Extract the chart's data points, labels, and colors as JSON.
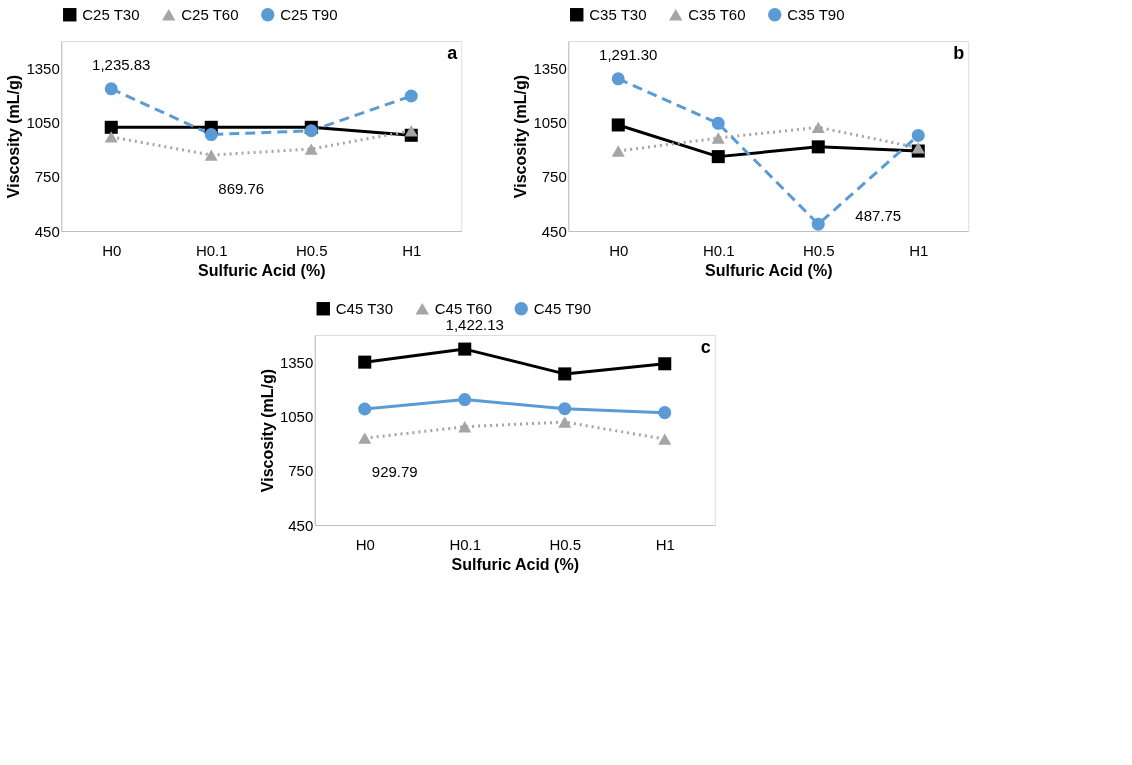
{
  "chart_data": [
    {
      "type": "line",
      "title": "a",
      "xlabel": "Sulfuric Acid  (%)",
      "ylabel": "Viscosity (mL/g)",
      "categories": [
        "H0",
        "H0.1",
        "H0.5",
        "H1"
      ],
      "ylim": [
        450,
        1500
      ],
      "yticks": [
        450,
        750,
        1050,
        1350
      ],
      "grid": false,
      "legend": "top",
      "series": [
        {
          "name": "C25 T30",
          "color": "#000000",
          "marker": "square",
          "line_style": "solid",
          "values": [
            1023,
            1023,
            1023,
            979
          ]
        },
        {
          "name": "C25 T60",
          "color": "#a5a5a5",
          "marker": "triangle",
          "line_style": "dotted",
          "values": [
            970,
            869.76,
            903,
            1004
          ]
        },
        {
          "name": "C25 T90",
          "color": "#5b9bd5",
          "marker": "circle",
          "line_style": "dashed",
          "values": [
            1235.83,
            983,
            1004,
            1196
          ]
        }
      ],
      "annotations": [
        {
          "text": "1,235.83",
          "x": "H0",
          "y": 1235.83
        },
        {
          "text": "869.76",
          "x": "H0.1",
          "y": 869.76
        }
      ]
    },
    {
      "type": "line",
      "title": "b",
      "xlabel": "Sulfuric Acid (%)",
      "ylabel": "Viscosity (mL/g)",
      "categories": [
        "H0",
        "H0.1",
        "H0.5",
        "H1"
      ],
      "ylim": [
        450,
        1500
      ],
      "yticks": [
        450,
        750,
        1050,
        1350
      ],
      "grid": false,
      "legend": "top",
      "series": [
        {
          "name": "C35 T30",
          "color": "#000000",
          "marker": "square",
          "line_style": "solid",
          "values": [
            1036,
            861,
            915,
            892
          ]
        },
        {
          "name": "C35 T60",
          "color": "#a5a5a5",
          "marker": "triangle",
          "line_style": "dotted",
          "values": [
            892,
            964,
            1023,
            910
          ]
        },
        {
          "name": "C35 T90",
          "color": "#5b9bd5",
          "marker": "circle",
          "line_style": "dashed",
          "values": [
            1291.3,
            1045,
            487.75,
            978
          ]
        }
      ],
      "annotations": [
        {
          "text": "1,291.30",
          "x": "H0",
          "y": 1291.3
        },
        {
          "text": "487.75",
          "x": "H0.5",
          "y": 487.75
        }
      ]
    },
    {
      "type": "line",
      "title": "c",
      "xlabel": "Sulfuric Acid (%)",
      "ylabel": "Viscosity (mL/g)",
      "categories": [
        "H0",
        "H0.1",
        "H0.5",
        "H1"
      ],
      "ylim": [
        450,
        1500
      ],
      "yticks": [
        450,
        750,
        1050,
        1350
      ],
      "grid": false,
      "legend": "top",
      "series": [
        {
          "name": "C45 T30",
          "color": "#000000",
          "marker": "square",
          "line_style": "solid",
          "values": [
            1350,
            1422.13,
            1285,
            1341
          ]
        },
        {
          "name": "C45 T60",
          "color": "#a5a5a5",
          "marker": "triangle",
          "line_style": "dotted",
          "values": [
            929.79,
            993,
            1019,
            925
          ]
        },
        {
          "name": "C45 T90",
          "color": "#5b9bd5",
          "marker": "circle",
          "line_style": "solid",
          "values": [
            1091,
            1143,
            1093,
            1071
          ]
        }
      ],
      "annotations": [
        {
          "text": "1,422.13",
          "x": "H0.1",
          "y": 1422.13
        },
        {
          "text": "929.79",
          "x": "H0",
          "y": 929.79
        }
      ]
    }
  ]
}
